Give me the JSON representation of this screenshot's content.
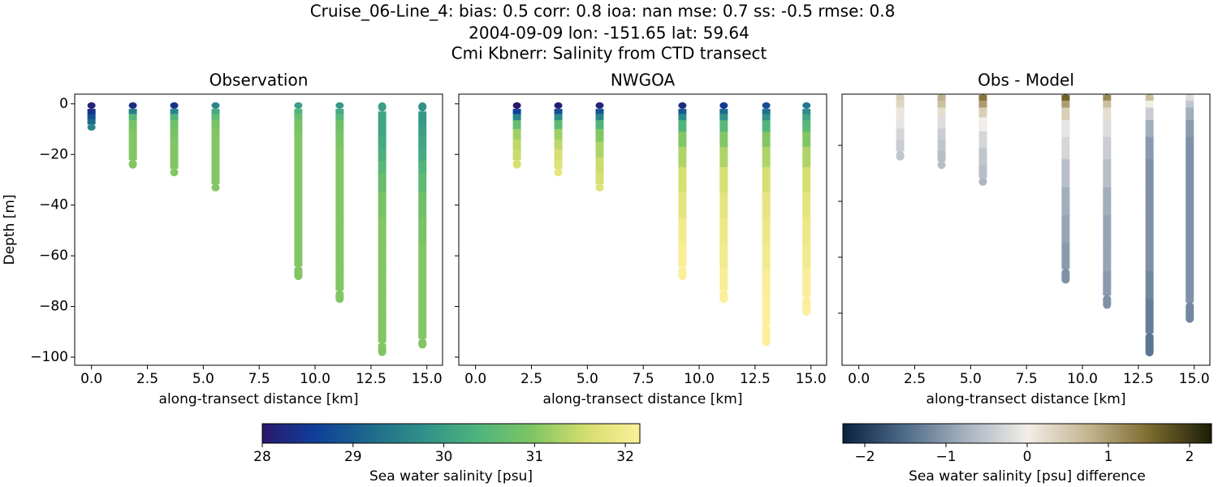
{
  "figure": {
    "title": [
      "Cruise_06-Line_4: bias: 0.5  corr: 0.8  ioa: nan  mse: 0.7  ss: -0.5  rmse: 0.8",
      "2004-09-09 lon: -151.65 lat: 59.64",
      "Cmi Kbnerr: Salinity from CTD transect"
    ],
    "colorbars": [
      {
        "label": "Sea water salinity [psu]",
        "clim": [
          28,
          32.16
        ],
        "ticks": [
          28,
          29,
          30,
          31,
          32
        ],
        "cmap": [
          "#2a186c",
          "#0f3f99",
          "#1e6a8b",
          "#30918a",
          "#4fb47c",
          "#7ec563",
          "#d5de6e",
          "#fdef9a"
        ]
      },
      {
        "label": "Sea water salinity [psu] difference",
        "clim": [
          -2.27,
          2.27
        ],
        "ticks": [
          {
            "value": -2,
            "label": "−2"
          },
          {
            "value": -1,
            "label": "−1"
          },
          0,
          1,
          2
        ],
        "cmap": [
          "#0a2240",
          "#4d6a88",
          "#a7b2bf",
          "#f1ede8",
          "#c4b48f",
          "#7c6a2e",
          "#1b1d08"
        ]
      }
    ]
  },
  "chart_data": [
    {
      "type": "scatter",
      "title": "Observation",
      "xlabel": "along-transect distance [km]",
      "ylabel": "Depth [m]",
      "colorbar": 0,
      "xlim": [
        -0.75,
        15.7
      ],
      "xticks": [
        {
          "value": 0,
          "label": "0.0"
        },
        2.5,
        {
          "value": 5,
          "label": "5.0"
        },
        7.5,
        {
          "value": 10,
          "label": "10.0"
        },
        12.5,
        {
          "value": 15,
          "label": "15.0"
        }
      ],
      "ylim": [
        -103.2,
        3.8
      ],
      "yticks": [
        0,
        {
          "value": -20,
          "label": "−20"
        },
        {
          "value": -40,
          "label": "−40"
        },
        {
          "value": -60,
          "label": "−60"
        },
        {
          "value": -80,
          "label": "−80"
        },
        {
          "value": -100,
          "label": "−100"
        }
      ],
      "ytick_labels": true,
      "casts": [
        {
          "x": 0.0,
          "depth": [
            -1,
            -3,
            -5,
            -7,
            -9
          ],
          "values": [
            28.2,
            28.4,
            28.8,
            29.2,
            29.6
          ]
        },
        {
          "x": 1.85,
          "depth": [
            -1,
            -3,
            -5,
            -8,
            -12,
            -16,
            -20,
            -24
          ],
          "values": [
            28.3,
            29.5,
            30.5,
            30.9,
            31.0,
            31.0,
            31.0,
            31.0
          ]
        },
        {
          "x": 3.7,
          "depth": [
            -1,
            -3,
            -5,
            -8,
            -12,
            -16,
            -20,
            -24,
            -27
          ],
          "values": [
            28.4,
            29.6,
            30.4,
            30.8,
            30.9,
            31.0,
            31.0,
            31.0,
            31.0
          ]
        },
        {
          "x": 5.55,
          "depth": [
            -1,
            -3,
            -5,
            -8,
            -12,
            -18,
            -24,
            -30,
            -33
          ],
          "values": [
            29.6,
            30.2,
            30.6,
            30.9,
            31.0,
            31.0,
            31.0,
            31.0,
            31.0
          ]
        },
        {
          "x": 9.25,
          "depth": [
            -1,
            -3,
            -5,
            -8,
            -14,
            -20,
            -30,
            -40,
            -50,
            -60,
            -68
          ],
          "values": [
            30.0,
            30.4,
            30.7,
            30.9,
            31.0,
            31.0,
            31.0,
            31.0,
            31.0,
            31.0,
            31.0
          ]
        },
        {
          "x": 11.1,
          "depth": [
            -1,
            -3,
            -5,
            -8,
            -14,
            -20,
            -30,
            -40,
            -50,
            -60,
            -70,
            -77
          ],
          "values": [
            29.9,
            30.2,
            30.5,
            30.8,
            30.9,
            31.0,
            31.0,
            31.0,
            31.0,
            31.0,
            31.0,
            31.0
          ]
        },
        {
          "x": 13.0,
          "depth": [
            -1,
            -5,
            -10,
            -15,
            -20,
            -25,
            -30,
            -40,
            -50,
            -60,
            -70,
            -80,
            -90,
            -98
          ],
          "values": [
            30.0,
            30.1,
            30.1,
            30.2,
            30.3,
            30.5,
            30.7,
            30.9,
            31.0,
            31.0,
            31.0,
            31.0,
            31.0,
            31.0
          ]
        },
        {
          "x": 14.8,
          "depth": [
            -1,
            -5,
            -10,
            -15,
            -20,
            -25,
            -30,
            -40,
            -50,
            -60,
            -70,
            -80,
            -90,
            -95
          ],
          "values": [
            29.8,
            29.9,
            30.0,
            30.1,
            30.2,
            30.4,
            30.6,
            30.8,
            30.9,
            31.0,
            31.0,
            31.0,
            31.0,
            31.0
          ]
        }
      ]
    },
    {
      "type": "scatter",
      "title": "NWGOA",
      "xlabel": "along-transect distance [km]",
      "colorbar": 0,
      "xlim": [
        -0.75,
        15.7
      ],
      "xticks": [
        {
          "value": 0,
          "label": "0.0"
        },
        2.5,
        {
          "value": 5,
          "label": "5.0"
        },
        7.5,
        {
          "value": 10,
          "label": "10.0"
        },
        12.5,
        {
          "value": 15,
          "label": "15.0"
        }
      ],
      "ylim": [
        -103.2,
        3.8
      ],
      "yticks": [
        0,
        -20,
        -40,
        -60,
        -80,
        -100
      ],
      "ytick_labels": false,
      "casts": [
        {
          "x": 1.85,
          "depth": [
            -1,
            -3,
            -5,
            -8,
            -12,
            -16,
            -20,
            -24
          ],
          "values": [
            28.0,
            28.6,
            29.6,
            30.7,
            31.2,
            31.4,
            31.5,
            31.6
          ]
        },
        {
          "x": 3.7,
          "depth": [
            -1,
            -3,
            -5,
            -8,
            -12,
            -16,
            -20,
            -24,
            -27
          ],
          "values": [
            28.1,
            28.8,
            29.7,
            30.6,
            31.2,
            31.4,
            31.6,
            31.7,
            31.8
          ]
        },
        {
          "x": 5.55,
          "depth": [
            -1,
            -3,
            -5,
            -8,
            -12,
            -18,
            -24,
            -30,
            -33
          ],
          "values": [
            28.2,
            28.9,
            29.6,
            30.4,
            31.0,
            31.3,
            31.5,
            31.6,
            31.7
          ]
        },
        {
          "x": 9.25,
          "depth": [
            -1,
            -3,
            -5,
            -8,
            -14,
            -20,
            -30,
            -40,
            -50,
            -60,
            -68
          ],
          "values": [
            28.3,
            29.0,
            29.7,
            30.4,
            31.0,
            31.3,
            31.6,
            31.8,
            32.0,
            32.1,
            32.2
          ]
        },
        {
          "x": 11.1,
          "depth": [
            -1,
            -3,
            -5,
            -8,
            -14,
            -20,
            -30,
            -40,
            -50,
            -60,
            -70,
            -77
          ],
          "values": [
            28.5,
            29.2,
            29.8,
            30.5,
            31.0,
            31.3,
            31.6,
            31.8,
            31.9,
            32.0,
            32.1,
            32.2
          ]
        },
        {
          "x": 13.0,
          "depth": [
            -1,
            -3,
            -5,
            -8,
            -14,
            -20,
            -30,
            -40,
            -50,
            -60,
            -70,
            -80,
            -94
          ],
          "values": [
            28.8,
            29.3,
            29.8,
            30.4,
            31.0,
            31.3,
            31.6,
            31.8,
            31.9,
            32.0,
            32.1,
            32.2,
            32.3
          ]
        },
        {
          "x": 14.8,
          "depth": [
            -1,
            -3,
            -5,
            -8,
            -14,
            -20,
            -30,
            -40,
            -50,
            -60,
            -70,
            -82
          ],
          "values": [
            29.4,
            29.7,
            30.1,
            30.5,
            31.0,
            31.3,
            31.6,
            31.8,
            31.9,
            32.0,
            32.1,
            32.2
          ]
        }
      ]
    },
    {
      "type": "scatter",
      "title": "Obs - Model",
      "xlabel": "along-transect distance [km]",
      "colorbar": 1,
      "xlim": [
        -0.75,
        15.7
      ],
      "xticks": [
        {
          "value": 0,
          "label": "0.0"
        },
        2.5,
        {
          "value": 5,
          "label": "5.0"
        },
        7.5,
        {
          "value": 10,
          "label": "10.0"
        },
        12.5,
        {
          "value": 15,
          "label": "15.0"
        }
      ],
      "ylim": [
        -98.6,
        -1.7
      ],
      "yticks": [
        -20,
        -40,
        -60,
        -80
      ],
      "ytick_labels": false,
      "casts": [
        {
          "x": 1.85,
          "depth": [
            -1,
            -3,
            -5,
            -8,
            -12,
            -16,
            -20,
            -24
          ],
          "values": [
            0.3,
            0.4,
            0.3,
            0.1,
            -0.1,
            -0.3,
            -0.4,
            -0.5
          ]
        },
        {
          "x": 3.7,
          "depth": [
            -1,
            -3,
            -5,
            -8,
            -12,
            -16,
            -20,
            -24,
            -27
          ],
          "values": [
            0.9,
            0.8,
            0.6,
            0.2,
            -0.2,
            -0.4,
            -0.5,
            -0.6,
            -0.6
          ]
        },
        {
          "x": 5.55,
          "depth": [
            -1,
            -3,
            -5,
            -8,
            -12,
            -18,
            -24,
            -30,
            -33
          ],
          "values": [
            1.7,
            1.4,
            1.0,
            0.4,
            0.0,
            -0.3,
            -0.5,
            -0.6,
            -0.7
          ]
        },
        {
          "x": 9.25,
          "depth": [
            -1,
            -3,
            -5,
            -8,
            -14,
            -20,
            -30,
            -40,
            -50,
            -60,
            -68
          ],
          "values": [
            2.0,
            1.6,
            1.0,
            0.4,
            -0.1,
            -0.3,
            -0.6,
            -0.8,
            -0.9,
            -1.0,
            -1.1
          ]
        },
        {
          "x": 11.1,
          "depth": [
            -1,
            -3,
            -5,
            -8,
            -14,
            -20,
            -30,
            -40,
            -50,
            -60,
            -70,
            -77
          ],
          "values": [
            2.0,
            1.2,
            0.6,
            0.2,
            -0.2,
            -0.4,
            -0.6,
            -0.8,
            -0.9,
            -0.9,
            -1.0,
            -1.1
          ]
        },
        {
          "x": 13.0,
          "depth": [
            -1,
            -3,
            -5,
            -8,
            -14,
            -20,
            -30,
            -40,
            -50,
            -60,
            -70,
            -80,
            -94
          ],
          "values": [
            1.2,
            0.6,
            0.0,
            -0.4,
            -0.8,
            -1.0,
            -1.1,
            -1.1,
            -1.1,
            -1.1,
            -1.2,
            -1.3,
            -1.4
          ]
        },
        {
          "x": 14.8,
          "depth": [
            -1,
            -3,
            -5,
            -8,
            -14,
            -20,
            -30,
            -40,
            -50,
            -60,
            -70,
            -82
          ],
          "values": [
            0.2,
            -0.2,
            -0.5,
            -0.8,
            -1.0,
            -1.1,
            -1.1,
            -1.1,
            -1.1,
            -1.1,
            -1.1,
            -1.2
          ]
        }
      ]
    }
  ]
}
